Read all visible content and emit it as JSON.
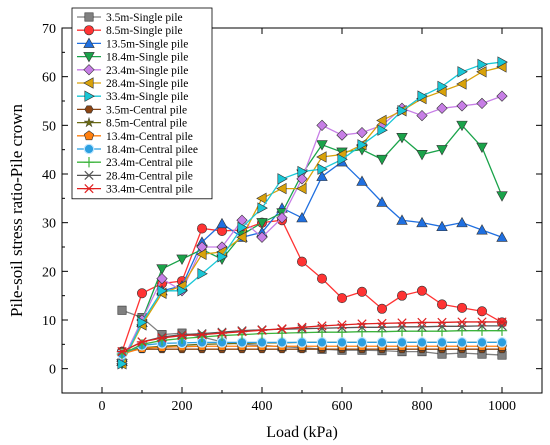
{
  "chart_data": {
    "type": "line",
    "xlabel": "Load (kPa)",
    "ylabel": "Pile-soil stress ratio-Pile crown",
    "xlim": [
      -100,
      1100
    ],
    "ylim": [
      -5,
      70
    ],
    "xticks": [
      0,
      200,
      400,
      600,
      800,
      1000
    ],
    "yticks": [
      0,
      10,
      20,
      30,
      40,
      50,
      60,
      70
    ],
    "x": [
      50,
      100,
      150,
      200,
      250,
      300,
      350,
      400,
      450,
      500,
      550,
      600,
      650,
      700,
      750,
      800,
      850,
      900,
      950,
      1000
    ],
    "legend_position": "top-left",
    "series": [
      {
        "name": "3.5m-Single pile",
        "color": "#808080",
        "marker": "square",
        "values": [
          12.0,
          10.5,
          7.0,
          7.3,
          6.5,
          5.5,
          5.0,
          4.8,
          4.5,
          4.3,
          4.0,
          3.8,
          3.8,
          3.7,
          3.5,
          3.5,
          3.0,
          3.2,
          3.0,
          2.8
        ]
      },
      {
        "name": "8.5m-Single pile",
        "color": "#ff3333",
        "marker": "circle",
        "values": [
          3.5,
          15.5,
          17.5,
          18.0,
          28.8,
          28.3,
          28.5,
          30.0,
          30.5,
          22.0,
          18.5,
          14.5,
          15.8,
          12.3,
          15.0,
          16.0,
          13.2,
          12.5,
          11.8,
          9.5
        ]
      },
      {
        "name": "13.5m-Single pile",
        "color": "#1f6fe0",
        "marker": "triangle-up",
        "values": [
          1.5,
          9.5,
          16.0,
          17.0,
          26.0,
          29.8,
          27.0,
          28.0,
          33.0,
          31.0,
          39.5,
          42.5,
          38.5,
          34.2,
          30.5,
          30.0,
          29.2,
          30.0,
          28.5,
          27.0
        ]
      },
      {
        "name": "18.4m-Single pile",
        "color": "#1aa34a",
        "marker": "triangle-down",
        "values": [
          1.0,
          10.0,
          20.5,
          22.5,
          24.5,
          22.5,
          27.5,
          30.0,
          32.0,
          40.0,
          46.0,
          44.5,
          45.0,
          43.0,
          47.5,
          44.0,
          45.0,
          50.0,
          45.5,
          35.5
        ]
      },
      {
        "name": "23.4m-Single pile",
        "color": "#c77ee6",
        "marker": "diamond",
        "values": [
          1.5,
          10.0,
          18.5,
          16.0,
          25.0,
          25.0,
          30.5,
          27.0,
          31.0,
          39.0,
          50.0,
          48.0,
          48.5,
          50.0,
          53.5,
          52.0,
          53.5,
          54.0,
          54.5,
          56.0
        ]
      },
      {
        "name": "28.4m-Single pile",
        "color": "#d9a20a",
        "marker": "triangle-left",
        "values": [
          1.0,
          9.0,
          15.5,
          17.0,
          23.5,
          24.0,
          27.0,
          35.0,
          37.0,
          37.0,
          43.5,
          44.0,
          46.0,
          51.0,
          53.0,
          55.5,
          57.0,
          58.5,
          61.0,
          62.0
        ]
      },
      {
        "name": "33.4m-Single pile",
        "color": "#19c7d6",
        "marker": "triangle-right",
        "values": [
          1.0,
          9.5,
          16.0,
          16.0,
          19.5,
          23.0,
          29.0,
          33.0,
          39.0,
          40.5,
          41.0,
          43.0,
          46.0,
          49.0,
          53.0,
          56.0,
          58.0,
          61.0,
          62.5,
          63.0
        ]
      },
      {
        "name": "3.5m-Central pile",
        "color": "#8b4513",
        "marker": "hexagon",
        "values": [
          3.5,
          4.0,
          4.0,
          4.0,
          4.0,
          4.0,
          4.0,
          4.0,
          4.0,
          4.0,
          4.0,
          4.0,
          4.0,
          4.0,
          4.0,
          4.0,
          4.0,
          4.0,
          4.0,
          4.0
        ]
      },
      {
        "name": "8.5m-Central pile",
        "color": "#6b6b14",
        "marker": "star",
        "values": [
          3.5,
          4.3,
          4.6,
          4.8,
          5.0,
          5.1,
          5.2,
          5.3,
          5.3,
          5.4,
          5.4,
          5.4,
          5.4,
          5.4,
          5.4,
          5.4,
          5.4,
          5.4,
          5.4,
          5.4
        ]
      },
      {
        "name": "13.4m-Central pile",
        "color": "#ff7f0e",
        "marker": "pentagon",
        "values": [
          3.0,
          4.2,
          4.4,
          4.5,
          4.6,
          4.6,
          4.6,
          4.6,
          4.6,
          4.6,
          4.6,
          4.6,
          4.6,
          4.6,
          4.6,
          4.6,
          4.6,
          4.6,
          4.6,
          4.6
        ]
      },
      {
        "name": "18.4m-Central pilee",
        "color": "#2b9fe0",
        "marker": "ball",
        "values": [
          3.0,
          4.8,
          5.2,
          5.3,
          5.4,
          5.4,
          5.4,
          5.4,
          5.4,
          5.4,
          5.4,
          5.4,
          5.4,
          5.4,
          5.4,
          5.4,
          5.4,
          5.4,
          5.4,
          5.4
        ]
      },
      {
        "name": "23.4m-Central pile",
        "color": "#3cb43c",
        "marker": "plus",
        "values": [
          3.0,
          5.0,
          5.8,
          6.2,
          6.5,
          6.8,
          7.0,
          7.2,
          7.3,
          7.4,
          7.5,
          7.5,
          7.6,
          7.6,
          7.7,
          7.7,
          7.7,
          7.8,
          7.8,
          7.8
        ]
      },
      {
        "name": "28.4m-Central pile",
        "color": "#555555",
        "marker": "x",
        "values": [
          3.5,
          5.5,
          6.5,
          7.0,
          7.2,
          7.5,
          7.8,
          8.0,
          8.1,
          8.2,
          8.3,
          8.4,
          8.5,
          8.5,
          8.6,
          8.6,
          8.7,
          8.7,
          8.8,
          8.8
        ]
      },
      {
        "name": "33.4m-Central pile",
        "color": "#e02020",
        "marker": "asterisk",
        "values": [
          3.5,
          5.5,
          6.3,
          6.8,
          7.0,
          7.3,
          7.6,
          7.9,
          8.2,
          8.5,
          8.8,
          9.0,
          9.2,
          9.3,
          9.4,
          9.5,
          9.5,
          9.6,
          9.6,
          9.6
        ]
      }
    ]
  }
}
